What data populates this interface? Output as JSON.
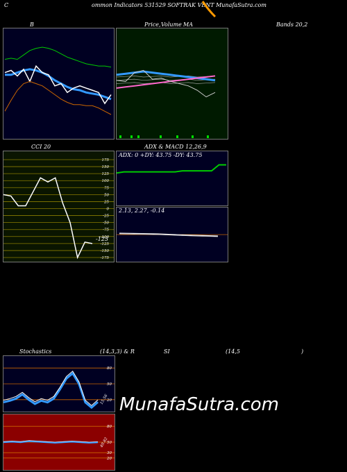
{
  "header": {
    "title_c": "C",
    "title_rest": "ommon  Indicators 531529 SOFTRAK VENT MunafaSutra.com"
  },
  "labels": {
    "b_label": "B",
    "price_label": "Price,",
    "volume_label": "Volume",
    "ma_label": "MA",
    "bands_label": "Bands 20,2",
    "cci_label": "CCI 20",
    "adx_macd_label": "ADX  & MACD 12,26,9",
    "stoch_label": "Stochastics",
    "stoch_params": "(14,3,3) & R",
    "rsi_label": "SI",
    "rsi_params": "(14,5",
    "paren_close": ")"
  },
  "adx_text": "ADX: 0  +DY: 43.75 -DY: 43.75",
  "macd_text": "2.13,  2.27,  -0.14",
  "cci_value_label": "-125",
  "stoch_value_label": "15.56",
  "rsi_value_label": "49.82",
  "watermark": "MunafaSutra.com",
  "colors": {
    "bg": "#000000",
    "navy_panel": "#000022",
    "green_panel": "#001a00",
    "cci_panel": "#0a1500",
    "rsi_panel": "#8b0000",
    "blue_line": "#3399ff",
    "green_line": "#00cc00",
    "orange_line": "#cc6600",
    "pink_line": "#ff66cc",
    "grid_olive": "#8b7d00"
  },
  "chart_data": [
    {
      "type": "line",
      "name": "bollinger",
      "series": [
        {
          "values": [
            0.72,
            0.73,
            0.72,
            0.76,
            0.8,
            0.82,
            0.83,
            0.82,
            0.8,
            0.77,
            0.74,
            0.72,
            0.7,
            0.68,
            0.67,
            0.66,
            0.66,
            0.65
          ]
        },
        {
          "values": [
            0.58,
            0.58,
            0.6,
            0.62,
            0.63,
            0.62,
            0.6,
            0.57,
            0.53,
            0.5,
            0.47,
            0.45,
            0.44,
            0.42,
            0.41,
            0.4,
            0.38,
            0.36
          ]
        },
        {
          "values": [
            0.6,
            0.62,
            0.57,
            0.63,
            0.52,
            0.66,
            0.6,
            0.58,
            0.48,
            0.5,
            0.42,
            0.46,
            0.48,
            0.46,
            0.44,
            0.42,
            0.32,
            0.4
          ]
        },
        {
          "values": [
            0.25,
            0.35,
            0.44,
            0.5,
            0.52,
            0.5,
            0.48,
            0.44,
            0.4,
            0.36,
            0.33,
            0.31,
            0.31,
            0.3,
            0.3,
            0.28,
            0.25,
            0.22
          ]
        }
      ]
    },
    {
      "type": "line",
      "name": "price-volume-ma",
      "series": [
        {
          "values": [
            0.58,
            0.59,
            0.6,
            0.61,
            0.6,
            0.59,
            0.58,
            0.57,
            0.56,
            0.55,
            0.54,
            0.53
          ]
        },
        {
          "values": [
            0.46,
            0.47,
            0.48,
            0.49,
            0.5,
            0.51,
            0.52,
            0.53,
            0.54,
            0.55,
            0.56,
            0.57
          ]
        },
        {
          "values": [
            0.53,
            0.52,
            0.6,
            0.62,
            0.54,
            0.55,
            0.52,
            0.5,
            0.48,
            0.44,
            0.38,
            0.42
          ]
        }
      ]
    },
    {
      "type": "line",
      "name": "cci",
      "ylim": [
        -175,
        175
      ],
      "yticks": [
        175,
        150,
        125,
        100,
        75,
        50,
        25,
        0,
        -25,
        -50,
        -75,
        -100,
        -125,
        -150,
        -175
      ],
      "values": [
        50,
        45,
        10,
        10,
        60,
        110,
        95,
        110,
        20,
        -50,
        -175,
        -120,
        -125
      ]
    },
    {
      "type": "line",
      "name": "adx",
      "values": [
        0.6,
        0.62,
        0.62,
        0.62,
        0.62,
        0.62,
        0.62,
        0.62,
        0.62,
        0.64,
        0.64,
        0.64,
        0.64,
        0.64,
        0.75,
        0.75
      ]
    },
    {
      "type": "line",
      "name": "stochastics",
      "ylim": [
        0,
        100
      ],
      "yticks": [
        80,
        50,
        20
      ],
      "values": [
        15,
        18,
        22,
        30,
        20,
        12,
        18,
        15,
        22,
        40,
        60,
        70,
        50,
        15,
        5,
        15.56
      ]
    },
    {
      "type": "line",
      "name": "rsi",
      "ylim": [
        0,
        100
      ],
      "yticks": [
        80,
        50,
        30,
        20
      ],
      "values": [
        50,
        51,
        50,
        52,
        51,
        50,
        49,
        50,
        51,
        50,
        49,
        49.82
      ]
    }
  ]
}
